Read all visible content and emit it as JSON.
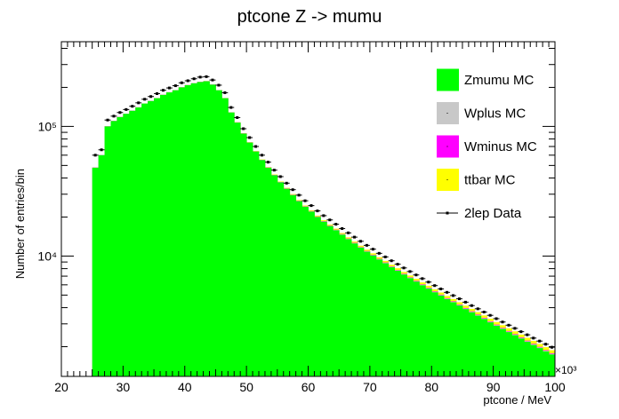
{
  "chart_data": {
    "type": "bar",
    "title": "ptcone Z -> mumu",
    "xlabel": "ptcone / MeV",
    "ylabel": "Number of entries/bin",
    "x_multiplier_label": "×10³",
    "xlim": [
      20000,
      100000
    ],
    "ylim": [
      1180,
      450000
    ],
    "y_scale": "log",
    "x_ticks": [
      "20",
      "30",
      "40",
      "50",
      "60",
      "70",
      "80",
      "90",
      "100"
    ],
    "y_tick_labels": [
      {
        "value": 10000,
        "label": "10⁴"
      },
      {
        "value": 100000,
        "label": "10⁵"
      }
    ],
    "legend_position": "top-right",
    "bin_width": 1000,
    "x": [
      25500,
      26500,
      27500,
      28500,
      29500,
      30500,
      31500,
      32500,
      33500,
      34500,
      35500,
      36500,
      37500,
      38500,
      39500,
      40500,
      41500,
      42500,
      43500,
      44500,
      45500,
      46500,
      47500,
      48500,
      49500,
      50500,
      51500,
      52500,
      53500,
      54500,
      55500,
      56500,
      57500,
      58500,
      59500,
      60500,
      61500,
      62500,
      63500,
      64500,
      65500,
      66500,
      67500,
      68500,
      69500,
      70500,
      71500,
      72500,
      73500,
      74500,
      75500,
      76500,
      77500,
      78500,
      79500,
      80500,
      81500,
      82500,
      83500,
      84500,
      85500,
      86500,
      87500,
      88500,
      89500,
      90500,
      91500,
      92500,
      93500,
      94500,
      95500,
      96500,
      97500,
      98500,
      99500
    ],
    "series": [
      {
        "name": "Zmumu MC",
        "color": "#00ff00",
        "style": "stack",
        "values": [
          48000,
          60000,
          100000,
          110000,
          118000,
          125000,
          132000,
          140000,
          150000,
          157000,
          165000,
          175000,
          183000,
          190000,
          200000,
          208000,
          215000,
          220000,
          223000,
          210000,
          190000,
          165000,
          128000,
          107000,
          88000,
          75000,
          64000,
          55000,
          48000,
          42000,
          37000,
          33000,
          29500,
          26500,
          24000,
          22000,
          20000,
          18400,
          17000,
          15800,
          14600,
          13500,
          12500,
          11600,
          10800,
          10100,
          9400,
          8800,
          8200,
          7700,
          7200,
          6750,
          6350,
          5950,
          5600,
          5250,
          4950,
          4650,
          4400,
          4150,
          3900,
          3680,
          3470,
          3270,
          3080,
          2900,
          2740,
          2590,
          2450,
          2310,
          2180,
          2060,
          1950,
          1840,
          1740
        ]
      },
      {
        "name": "Wplus MC",
        "color": "#c8c8c8",
        "style": "stack",
        "values": [
          100,
          120,
          150,
          170,
          180,
          190,
          200,
          210,
          220,
          230,
          240,
          250,
          260,
          270,
          280,
          290,
          300,
          300,
          300,
          290,
          280,
          260,
          230,
          210,
          190,
          180,
          170,
          160,
          150,
          145,
          140,
          135,
          130,
          125,
          120,
          115,
          110,
          105,
          100,
          96,
          92,
          88,
          85,
          82,
          79,
          76,
          73,
          70,
          68,
          65,
          62,
          60,
          58,
          56,
          54,
          52,
          50,
          48,
          46,
          44,
          42,
          40,
          38,
          36,
          34,
          32,
          30,
          29,
          28,
          27,
          26,
          25,
          24,
          23,
          22
        ]
      },
      {
        "name": "Wminus MC",
        "color": "#ff00ff",
        "style": "stack",
        "values": [
          80,
          95,
          120,
          135,
          145,
          150,
          160,
          170,
          175,
          180,
          190,
          200,
          210,
          215,
          225,
          230,
          240,
          240,
          240,
          230,
          220,
          210,
          185,
          170,
          150,
          145,
          135,
          130,
          120,
          116,
          112,
          108,
          104,
          100,
          96,
          92,
          88,
          84,
          80,
          77,
          74,
          71,
          68,
          66,
          63,
          61,
          58,
          56,
          54,
          52,
          50,
          48,
          46,
          45,
          43,
          42,
          40,
          38,
          37,
          35,
          34,
          32,
          30,
          29,
          27,
          26,
          24,
          23,
          22,
          22,
          21,
          20,
          19,
          18,
          18
        ]
      },
      {
        "name": "ttbar MC",
        "color": "#ffff00",
        "style": "stack",
        "values": [
          60,
          70,
          80,
          90,
          100,
          110,
          120,
          130,
          140,
          150,
          160,
          170,
          180,
          190,
          200,
          210,
          220,
          230,
          240,
          250,
          260,
          270,
          280,
          290,
          300,
          305,
          310,
          315,
          320,
          320,
          320,
          320,
          318,
          315,
          312,
          308,
          304,
          300,
          295,
          290,
          285,
          280,
          275,
          270,
          264,
          258,
          252,
          246,
          240,
          234,
          228,
          222,
          216,
          210,
          204,
          198,
          192,
          186,
          180,
          174,
          168,
          162,
          156,
          150,
          145,
          140,
          135,
          130,
          125,
          120,
          115,
          110,
          106,
          102,
          98
        ]
      },
      {
        "name": "2lep Data",
        "color": "#000000",
        "style": "points",
        "values": [
          60000,
          66000,
          112000,
          120000,
          128000,
          135000,
          143000,
          152000,
          162000,
          170000,
          179000,
          190000,
          198000,
          206000,
          217000,
          225000,
          233000,
          240000,
          242000,
          228000,
          208000,
          182000,
          140000,
          117000,
          96000,
          82000,
          70000,
          60000,
          53000,
          46000,
          41000,
          36500,
          32500,
          29500,
          26700,
          24500,
          22300,
          20500,
          19000,
          17600,
          16300,
          15100,
          14000,
          13000,
          12100,
          11300,
          10500,
          9850,
          9200,
          8650,
          8100,
          7600,
          7150,
          6700,
          6300,
          5920,
          5580,
          5250,
          4960,
          4680,
          4410,
          4150,
          3920,
          3700,
          3490,
          3290,
          3100,
          2930,
          2770,
          2610,
          2470,
          2330,
          2210,
          2090,
          1980
        ]
      }
    ]
  }
}
